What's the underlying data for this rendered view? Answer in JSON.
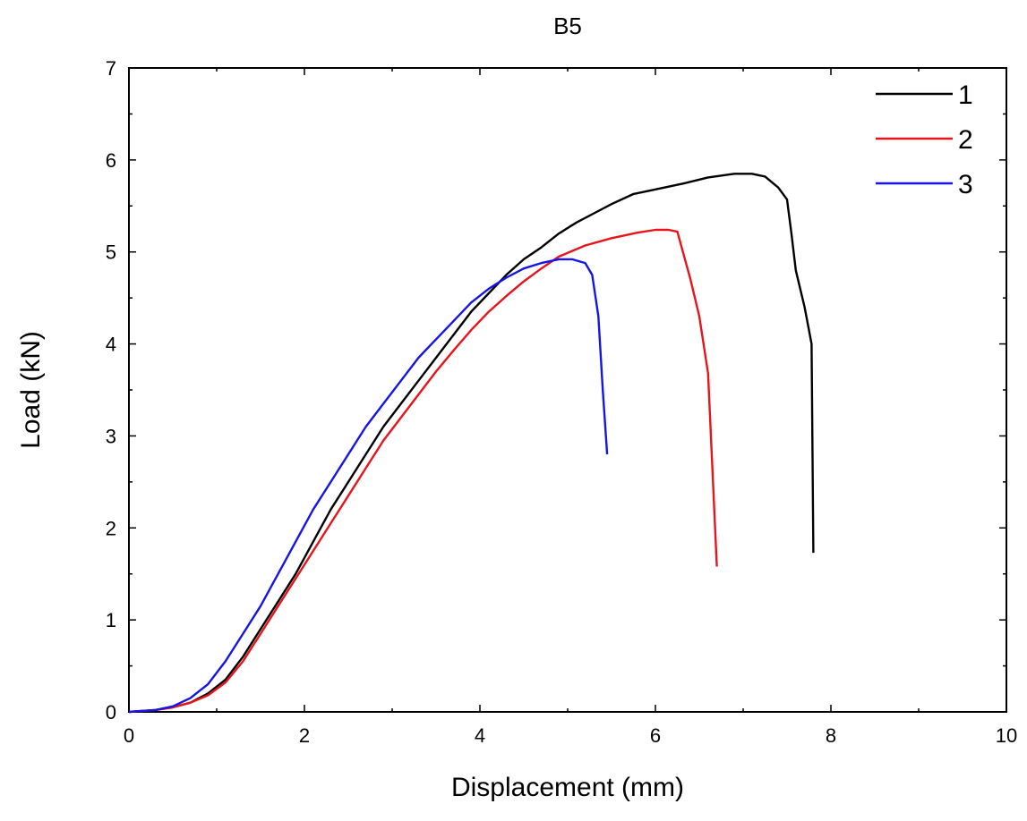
{
  "chart_data": {
    "type": "line",
    "title": "B5",
    "xlabel": "Displacement (mm)",
    "ylabel": "Load (kN)",
    "xlim": [
      0,
      10
    ],
    "ylim": [
      0,
      7
    ],
    "xticks": [
      0,
      2,
      4,
      6,
      8,
      10
    ],
    "yticks": [
      0,
      1,
      2,
      3,
      4,
      5,
      6,
      7
    ],
    "grid": false,
    "legend_position": "top-right",
    "series": [
      {
        "name": "1",
        "color": "#000000",
        "x": [
          0,
          0.3,
          0.5,
          0.7,
          0.9,
          1.1,
          1.3,
          1.5,
          1.7,
          1.9,
          2.1,
          2.3,
          2.5,
          2.7,
          2.9,
          3.1,
          3.3,
          3.5,
          3.7,
          3.9,
          4.1,
          4.3,
          4.5,
          4.7,
          4.9,
          5.1,
          5.3,
          5.5,
          5.75,
          6.0,
          6.3,
          6.6,
          6.9,
          7.1,
          7.25,
          7.4,
          7.5,
          7.55,
          7.6,
          7.7,
          7.75,
          7.78,
          7.8
        ],
        "y": [
          0,
          0.02,
          0.05,
          0.1,
          0.2,
          0.35,
          0.6,
          0.9,
          1.2,
          1.5,
          1.85,
          2.2,
          2.5,
          2.8,
          3.1,
          3.35,
          3.6,
          3.85,
          4.1,
          4.35,
          4.55,
          4.75,
          4.92,
          5.05,
          5.2,
          5.32,
          5.42,
          5.52,
          5.63,
          5.68,
          5.74,
          5.81,
          5.85,
          5.85,
          5.82,
          5.7,
          5.57,
          5.2,
          4.8,
          4.4,
          4.15,
          4.0,
          1.73
        ]
      },
      {
        "name": "2",
        "color": "#e8141b",
        "x": [
          0,
          0.3,
          0.5,
          0.7,
          0.9,
          1.1,
          1.3,
          1.5,
          1.7,
          1.9,
          2.1,
          2.3,
          2.5,
          2.7,
          2.9,
          3.1,
          3.3,
          3.5,
          3.7,
          3.9,
          4.1,
          4.3,
          4.5,
          4.7,
          4.9,
          5.2,
          5.5,
          5.8,
          6.0,
          6.15,
          6.25,
          6.4,
          6.5,
          6.6,
          6.7
        ],
        "y": [
          0,
          0.02,
          0.05,
          0.1,
          0.18,
          0.32,
          0.55,
          0.85,
          1.15,
          1.45,
          1.75,
          2.05,
          2.35,
          2.65,
          2.95,
          3.2,
          3.45,
          3.7,
          3.93,
          4.15,
          4.35,
          4.52,
          4.68,
          4.82,
          4.95,
          5.07,
          5.15,
          5.21,
          5.24,
          5.24,
          5.22,
          4.7,
          4.3,
          3.68,
          1.58
        ]
      },
      {
        "name": "3",
        "color": "#1515e8",
        "x": [
          0,
          0.3,
          0.5,
          0.7,
          0.9,
          1.1,
          1.3,
          1.5,
          1.7,
          1.9,
          2.1,
          2.3,
          2.5,
          2.7,
          2.9,
          3.1,
          3.3,
          3.5,
          3.7,
          3.9,
          4.1,
          4.3,
          4.5,
          4.7,
          4.9,
          5.05,
          5.2,
          5.28,
          5.35,
          5.4,
          5.45
        ],
        "y": [
          0,
          0.02,
          0.06,
          0.15,
          0.3,
          0.55,
          0.85,
          1.15,
          1.5,
          1.85,
          2.2,
          2.5,
          2.8,
          3.1,
          3.35,
          3.6,
          3.85,
          4.05,
          4.25,
          4.45,
          4.6,
          4.72,
          4.82,
          4.88,
          4.92,
          4.92,
          4.88,
          4.75,
          4.3,
          3.5,
          2.8
        ]
      }
    ]
  }
}
